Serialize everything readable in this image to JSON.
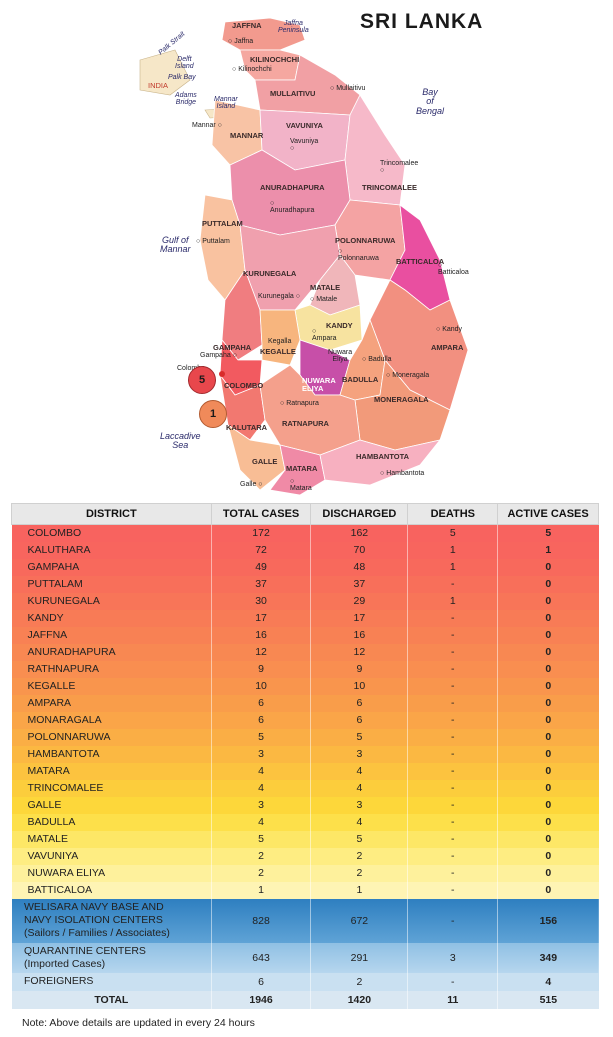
{
  "map": {
    "title": "SRI LANKA",
    "districts": [
      {
        "id": "jaffna",
        "label": "JAFFNA"
      },
      {
        "id": "kilinochchi",
        "label": "KILINOCHCHI"
      },
      {
        "id": "mullaitivu",
        "label": "MULLAITIVU"
      },
      {
        "id": "mannar",
        "label": "MANNAR"
      },
      {
        "id": "vavuniya",
        "label": "VAVUNIYA"
      },
      {
        "id": "trincomalee",
        "label": "TRINCOMALEE"
      },
      {
        "id": "anuradhapura",
        "label": "ANURADHAPURA"
      },
      {
        "id": "puttalam",
        "label": "PUTTALAM"
      },
      {
        "id": "polonnaruwa",
        "label": "POLONNARUWA"
      },
      {
        "id": "batticaloa",
        "label": "BATTICALOA"
      },
      {
        "id": "kurunegala",
        "label": "KURUNEGALA"
      },
      {
        "id": "matale",
        "label": "MATALE"
      },
      {
        "id": "kandy",
        "label": "KANDY"
      },
      {
        "id": "ampara",
        "label": "AMPARA"
      },
      {
        "id": "gampaha",
        "label": "GAMPAHA"
      },
      {
        "id": "kegalle",
        "label": "KEGALLE"
      },
      {
        "id": "colombo",
        "label": "COLOMBO"
      },
      {
        "id": "nuwara-eliya",
        "label": "NUWARA\nELIYA"
      },
      {
        "id": "badulla",
        "label": "BADULLA"
      },
      {
        "id": "moneragala",
        "label": "MONERAGALA"
      },
      {
        "id": "kalutara",
        "label": "KALUTARA"
      },
      {
        "id": "ratnapura",
        "label": "RATNAPURA"
      },
      {
        "id": "galle",
        "label": "GALLE"
      },
      {
        "id": "matara",
        "label": "MATARA"
      },
      {
        "id": "hambantota",
        "label": "HAMBANTOTA"
      }
    ],
    "towns": [
      {
        "id": "jaffna",
        "label": "Jaffna"
      },
      {
        "id": "kilinochchi",
        "label": "Kilinochchi"
      },
      {
        "id": "mullaitivu",
        "label": "Mullaitivu"
      },
      {
        "id": "mannar",
        "label": "Mannar"
      },
      {
        "id": "vavuniya",
        "label": "Vavuniya"
      },
      {
        "id": "trincomalee",
        "label": "Trincomalee"
      },
      {
        "id": "anuradhapura",
        "label": "Anuradhapura"
      },
      {
        "id": "puttalam",
        "label": "Puttalam"
      },
      {
        "id": "polonnaruwa",
        "label": "Polonnaruwa"
      },
      {
        "id": "batticaloa",
        "label": "Batticaloa"
      },
      {
        "id": "kurunegala",
        "label": "Kurunegala"
      },
      {
        "id": "matale",
        "label": "Matale"
      },
      {
        "id": "kandy",
        "label": "Kandy"
      },
      {
        "id": "ampara",
        "label": "Ampara"
      },
      {
        "id": "gampaha",
        "label": "Gampaha"
      },
      {
        "id": "kegalla",
        "label": "Kegalla"
      },
      {
        "id": "colombo",
        "label": "Colombo"
      },
      {
        "id": "nuwara-eliya",
        "label": "Nuwara\nEliya"
      },
      {
        "id": "badulla",
        "label": "Badulla"
      },
      {
        "id": "moneragala",
        "label": "Moneragala"
      },
      {
        "id": "ratnapura",
        "label": "Ratnapura"
      },
      {
        "id": "galle",
        "label": "Galle"
      },
      {
        "id": "matara",
        "label": "Matara"
      },
      {
        "id": "hambantota",
        "label": "Hambantota"
      }
    ],
    "seas": [
      {
        "id": "palk-strait",
        "label": "Palk Strait"
      },
      {
        "id": "delft-island",
        "label": "Delft\nIsland"
      },
      {
        "id": "palk-bay",
        "label": "Palk Bay"
      },
      {
        "id": "adams-bridge",
        "label": "Adams\nBridge"
      },
      {
        "id": "mannar-island",
        "label": "Mannar\nIsland"
      },
      {
        "id": "jaffna-peninsula",
        "label": "Jaffna\nPeninsula"
      },
      {
        "id": "bay-of-bengal",
        "label": "Bay\nof\nBengal"
      },
      {
        "id": "gulf-of-mannar",
        "label": "Gulf of\nMannar"
      },
      {
        "id": "laccadive-sea",
        "label": "Laccadive\nSea"
      }
    ],
    "india_label": "INDIA",
    "markers": [
      {
        "id": "colombo",
        "value": "5",
        "color": "#e8474c"
      },
      {
        "id": "kalutara",
        "value": "1",
        "color": "#f08a5a"
      }
    ]
  },
  "table": {
    "headers": [
      "DISTRICT",
      "TOTAL CASES",
      "DISCHARGED",
      "DEATHS",
      "ACTIVE CASES"
    ],
    "rows": [
      {
        "district": "COLOMBO",
        "total": "172",
        "discharged": "162",
        "deaths": "5",
        "active": "5",
        "color": "#f8635f"
      },
      {
        "district": "KALUTHARA",
        "total": "72",
        "discharged": "70",
        "deaths": "1",
        "active": "1",
        "color": "#f8655e"
      },
      {
        "district": "GAMPAHA",
        "total": "49",
        "discharged": "48",
        "deaths": "1",
        "active": "0",
        "color": "#f8695c"
      },
      {
        "district": "PUTTALAM",
        "total": "37",
        "discharged": "37",
        "deaths": "-",
        "active": "0",
        "color": "#f86f5a"
      },
      {
        "district": "KURUNEGALA",
        "total": "30",
        "discharged": "29",
        "deaths": "1",
        "active": "0",
        "color": "#f87558"
      },
      {
        "district": "KANDY",
        "total": "17",
        "discharged": "17",
        "deaths": "-",
        "active": "0",
        "color": "#f87b56"
      },
      {
        "district": "JAFFNA",
        "total": "16",
        "discharged": "16",
        "deaths": "-",
        "active": "0",
        "color": "#f88154"
      },
      {
        "district": "ANURADHAPURA",
        "total": "12",
        "discharged": "12",
        "deaths": "-",
        "active": "0",
        "color": "#f88852"
      },
      {
        "district": "RATHNAPURA",
        "total": "9",
        "discharged": "9",
        "deaths": "-",
        "active": "0",
        "color": "#f98e50"
      },
      {
        "district": "KEGALLE",
        "total": "10",
        "discharged": "10",
        "deaths": "-",
        "active": "0",
        "color": "#f9954d"
      },
      {
        "district": "AMPARA",
        "total": "6",
        "discharged": "6",
        "deaths": "-",
        "active": "0",
        "color": "#f99d4a"
      },
      {
        "district": "MONARAGALA",
        "total": "6",
        "discharged": "6",
        "deaths": "-",
        "active": "0",
        "color": "#faa548"
      },
      {
        "district": "POLONNARUWA",
        "total": "5",
        "discharged": "5",
        "deaths": "-",
        "active": "0",
        "color": "#faae45"
      },
      {
        "district": "HAMBANTOTA",
        "total": "3",
        "discharged": "3",
        "deaths": "-",
        "active": "0",
        "color": "#fbb842"
      },
      {
        "district": "MATARA",
        "total": "4",
        "discharged": "4",
        "deaths": "-",
        "active": "0",
        "color": "#fcc33f"
      },
      {
        "district": "TRINCOMALEE",
        "total": "4",
        "discharged": "4",
        "deaths": "-",
        "active": "0",
        "color": "#fccd3c"
      },
      {
        "district": "GALLE",
        "total": "3",
        "discharged": "3",
        "deaths": "-",
        "active": "0",
        "color": "#fdd73a"
      },
      {
        "district": "BADULLA",
        "total": "4",
        "discharged": "4",
        "deaths": "-",
        "active": "0",
        "color": "#fde04a"
      },
      {
        "district": "MATALE",
        "total": "5",
        "discharged": "5",
        "deaths": "-",
        "active": "0",
        "color": "#fde766"
      },
      {
        "district": "VAVUNIYA",
        "total": "2",
        "discharged": "2",
        "deaths": "-",
        "active": "0",
        "color": "#feed82"
      },
      {
        "district": "NUWARA ELIYA",
        "total": "2",
        "discharged": "2",
        "deaths": "-",
        "active": "0",
        "color": "#fef19c"
      },
      {
        "district": "BATTICALOA",
        "total": "1",
        "discharged": "1",
        "deaths": "-",
        "active": "0",
        "color": "#fef4b4"
      }
    ],
    "special_rows": [
      {
        "name_lines": [
          "WELISARA NAVY BASE AND",
          "NAVY ISOLATION CENTERS",
          "(Sailors / Families / Associates)"
        ],
        "total": "828",
        "discharged": "672",
        "deaths": "-",
        "active": "156"
      },
      {
        "name_lines": [
          "QUARANTINE CENTERS",
          "(Imported Cases)"
        ],
        "total": "643",
        "discharged": "291",
        "deaths": "3",
        "active": "349"
      },
      {
        "name_lines": [
          "FOREIGNERS"
        ],
        "total": "6",
        "discharged": "2",
        "deaths": "-",
        "active": "4"
      }
    ],
    "total_row": {
      "label": "TOTAL",
      "total": "1946",
      "discharged": "1420",
      "deaths": "11",
      "active": "515"
    }
  },
  "note": "Note: Above details are updated in every 24 hours"
}
